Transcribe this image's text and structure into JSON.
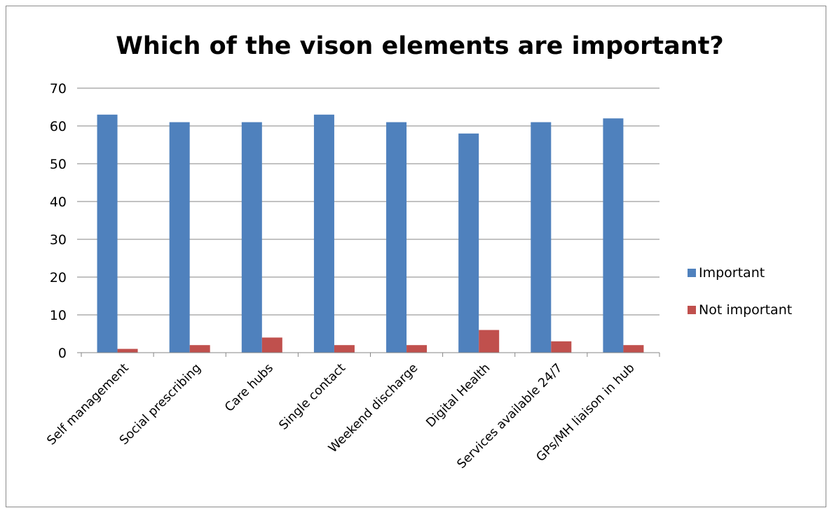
{
  "chart_data": {
    "type": "bar",
    "title": "Which of the vison elements are important?",
    "xlabel": "",
    "ylabel": "",
    "categories": [
      "Self management",
      "Social prescribing",
      "Care hubs",
      "Single contact",
      "Weekend discharge",
      "Digital Health",
      "Services available 24/7",
      "GPs/MH liaison in hub"
    ],
    "series": [
      {
        "name": "Important",
        "color": "#4f81bd",
        "values": [
          63,
          61,
          61,
          63,
          61,
          58,
          61,
          62
        ]
      },
      {
        "name": "Not important",
        "color": "#c0504d",
        "values": [
          1,
          2,
          4,
          2,
          2,
          6,
          3,
          2
        ]
      }
    ],
    "ylim": [
      0,
      70
    ],
    "yticks": [
      0,
      10,
      20,
      30,
      40,
      50,
      60,
      70
    ],
    "grid": true,
    "legend_position": "right"
  }
}
